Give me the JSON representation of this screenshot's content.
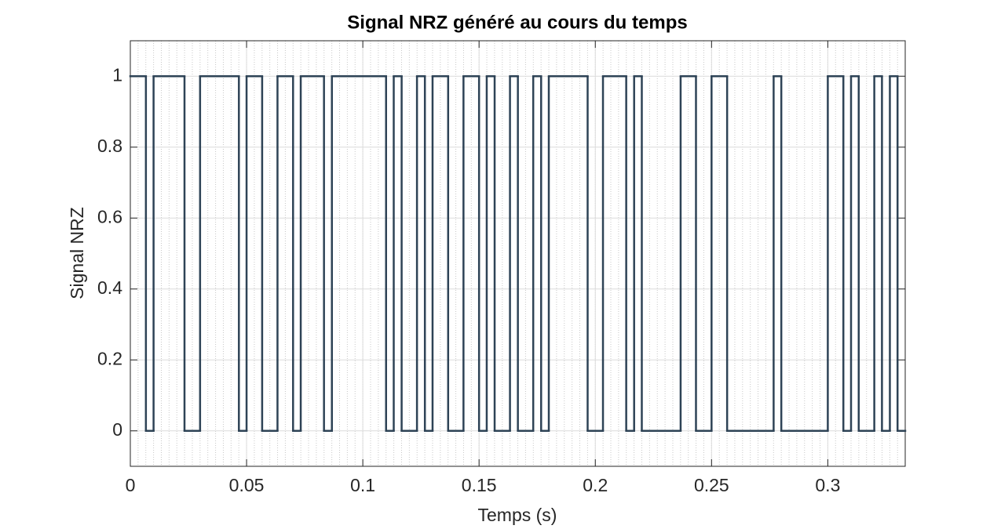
{
  "chart_data": {
    "type": "step",
    "title": "Signal NRZ généré au cours du temps",
    "xlabel": "Temps (s)",
    "ylabel": "Signal NRZ",
    "x": [
      0,
      0.0067,
      0.01,
      0.0233,
      0.03,
      0.0467,
      0.05,
      0.0567,
      0.0633,
      0.07,
      0.0733,
      0.0833,
      0.0867,
      0.11,
      0.1133,
      0.1167,
      0.1233,
      0.1267,
      0.13,
      0.1367,
      0.1433,
      0.15,
      0.1533,
      0.1567,
      0.1633,
      0.1667,
      0.1733,
      0.1767,
      0.18,
      0.1967,
      0.2033,
      0.2133,
      0.2167,
      0.22,
      0.2367,
      0.2433,
      0.25,
      0.2567,
      0.2767,
      0.28,
      0.3,
      0.3067,
      0.31,
      0.3133,
      0.32,
      0.3233,
      0.3267,
      0.33
    ],
    "values": [
      1,
      0,
      1,
      0,
      1,
      0,
      1,
      0,
      1,
      0,
      1,
      0,
      1,
      0,
      1,
      0,
      1,
      0,
      1,
      0,
      1,
      0,
      1,
      0,
      1,
      0,
      1,
      0,
      1,
      0,
      1,
      0,
      1,
      0,
      1,
      0,
      1,
      0,
      1,
      0,
      1,
      0,
      1,
      0,
      1,
      0,
      1,
      0
    ],
    "color": "#2e4356",
    "xlim": [
      0,
      0.3333
    ],
    "ylim": [
      -0.1,
      1.1
    ],
    "xticks": [
      0,
      0.05,
      0.1,
      0.15,
      0.2,
      0.25,
      0.3
    ],
    "yticks": [
      0,
      0.2,
      0.4,
      0.6,
      0.8,
      1
    ],
    "grid": true,
    "minor_grid": true
  }
}
